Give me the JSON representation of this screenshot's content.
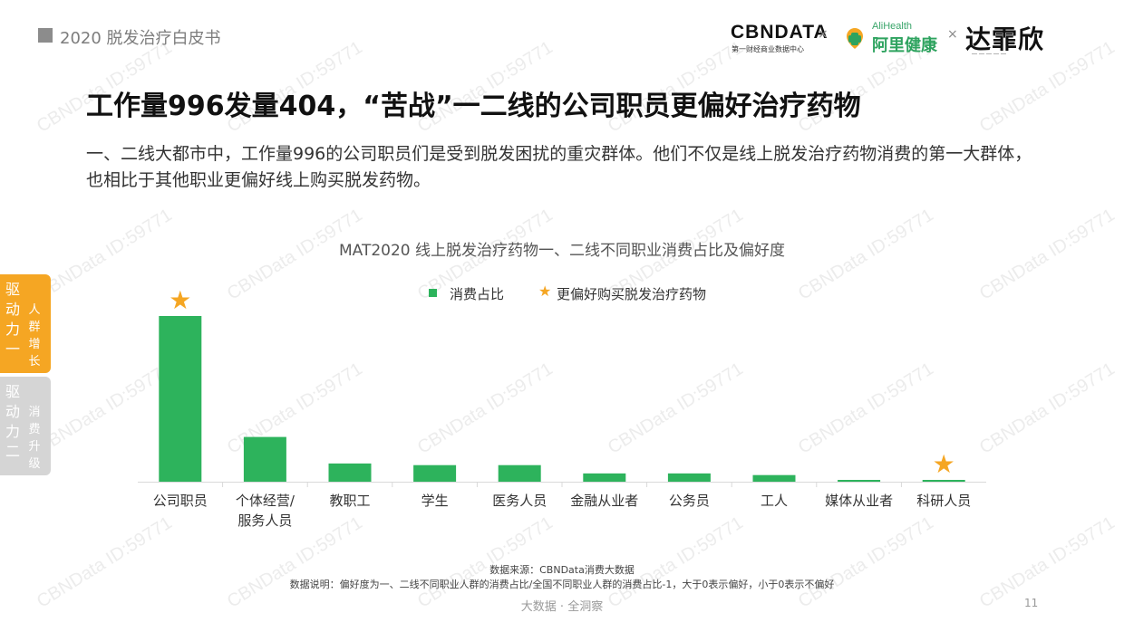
{
  "header": {
    "title": "2020 脱发治疗白皮书"
  },
  "logos": {
    "cbn": "CBNDATA",
    "cbn_sub": "第一财经商业数据中心",
    "separator": "×",
    "alihealth_en": "AliHealth",
    "alihealth_cn": "阿里健康",
    "dar": "达霏欣"
  },
  "title": "工作量996发量404，“苦战”一二线的公司职员更偏好治疗药物",
  "body_text": "一、二线大都市中，工作量996的公司职员们是受到脱发困扰的重灾群体。他们不仅是线上脱发治疗药物消费的第一大群体，也相比于其他职业更偏好线上购买脱发药物。",
  "side_tabs": [
    {
      "main": [
        "驱",
        "动",
        "力",
        "一"
      ],
      "sub": [
        "人",
        "群",
        "增",
        "长"
      ]
    },
    {
      "main": [
        "驱",
        "动",
        "力",
        "二"
      ],
      "sub": [
        "消",
        "费",
        "升",
        "级"
      ]
    }
  ],
  "legend": {
    "bar_label": "消费占比",
    "star_label": "更偏好购买脱发治疗药物"
  },
  "chart_data": {
    "type": "bar",
    "title": "MAT2020 线上脱发治疗药物一、二线不同职业消费占比及偏好度",
    "categories": [
      "公司职员",
      "个体经营/服务人员",
      "教职工",
      "学生",
      "医务人员",
      "金融从业者",
      "公务员",
      "工人",
      "媒体从业者",
      "科研人员"
    ],
    "category_lines": [
      [
        "公司职员"
      ],
      [
        "个体经营/",
        "服务人员"
      ],
      [
        "教职工"
      ],
      [
        "学生"
      ],
      [
        "医务人员"
      ],
      [
        "金融从业者"
      ],
      [
        "公务员"
      ],
      [
        "工人"
      ],
      [
        "媒体从业者"
      ],
      [
        "科研人员"
      ]
    ],
    "series": [
      {
        "values": [
          100,
          27,
          11,
          10,
          10,
          5,
          5,
          4,
          1,
          1
        ]
      }
    ],
    "preferred": [
      "公司职员",
      "科研人员"
    ],
    "ylim": [
      0,
      100
    ],
    "axis_visible": false,
    "grid": false,
    "bar_color": "#2db35c",
    "star_color": "#f5a623"
  },
  "footnotes": {
    "source": "数据来源：CBNData消费大数据",
    "note": "数据说明：偏好度为一、二线不同职业人群的消费占比/全国不同职业人群的消费占比-1，大于0表示偏好，小于0表示不偏好"
  },
  "bottom": {
    "text": "大数据 · 全洞察",
    "page_number": "11"
  },
  "watermark_text": "CBNData ID:59771"
}
